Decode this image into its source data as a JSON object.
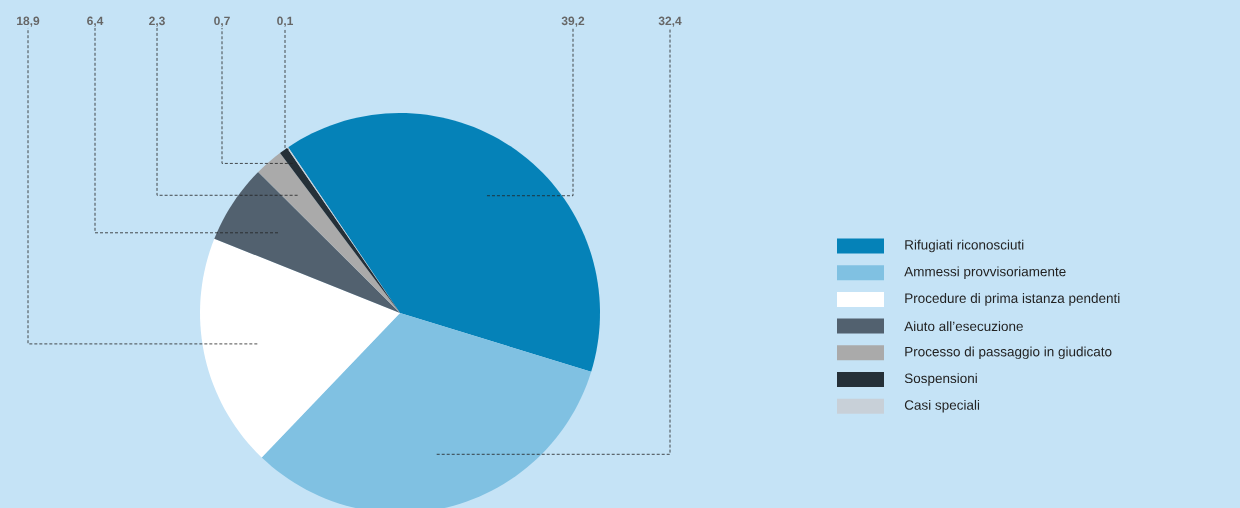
{
  "chart_data": {
    "type": "pie",
    "categories": [
      "Rifugiati riconosciuti",
      "Ammessi provvisoriamente",
      "Procedure di prima istanza pendenti",
      "Aiuto all’esecuzione",
      "Processo di passaggio in giudicato",
      "Sospensioni",
      "Casi speciali"
    ],
    "values": [
      39.2,
      32.4,
      18.9,
      6.4,
      2.3,
      0.7,
      0.1
    ],
    "value_labels": [
      "39,2",
      "32,4",
      "18,9",
      "6,4",
      "2,3",
      "0,7",
      "0,1"
    ],
    "colors": [
      "#0582b8",
      "#80c1e2",
      "#ffffff",
      "#52616f",
      "#aaaaaa",
      "#253038",
      "#c8d0d8"
    ],
    "legend": "right"
  }
}
